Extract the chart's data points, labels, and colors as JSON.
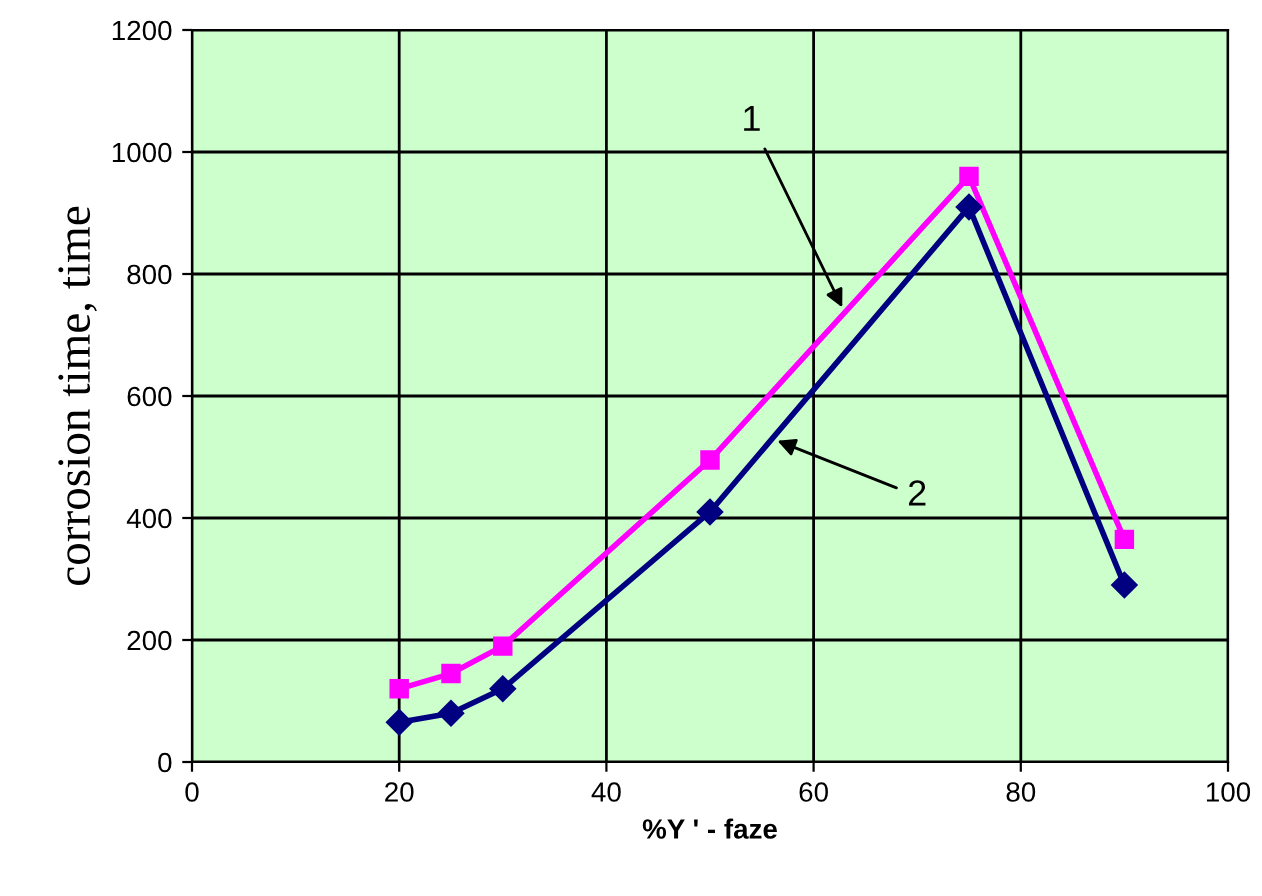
{
  "chart_data": {
    "type": "line",
    "xlabel": "%Y ' - faze",
    "ylabel": "corrosion time, time",
    "series": [
      {
        "color": "#ff00ff",
        "marker": "square",
        "x": [
          20,
          25,
          30,
          50,
          75,
          90
        ],
        "values": [
          120,
          145,
          190,
          495,
          960,
          365
        ]
      },
      {
        "color": "#000080",
        "marker": "diamond",
        "x": [
          20,
          25,
          30,
          50,
          75,
          90
        ],
        "values": [
          65,
          80,
          120,
          410,
          910,
          290
        ]
      }
    ],
    "annotations": [
      {
        "text": "1",
        "x": 63,
        "y": 737
      },
      {
        "text": "2",
        "x": 56,
        "y": 530
      }
    ],
    "xlim": [
      0,
      100
    ],
    "xticks": [
      0,
      20,
      40,
      60,
      80,
      100
    ],
    "ylim": [
      0,
      1200
    ],
    "yticks": [
      0,
      200,
      400,
      600,
      800,
      1000,
      1200
    ],
    "grid": true,
    "line_style": "solid"
  }
}
